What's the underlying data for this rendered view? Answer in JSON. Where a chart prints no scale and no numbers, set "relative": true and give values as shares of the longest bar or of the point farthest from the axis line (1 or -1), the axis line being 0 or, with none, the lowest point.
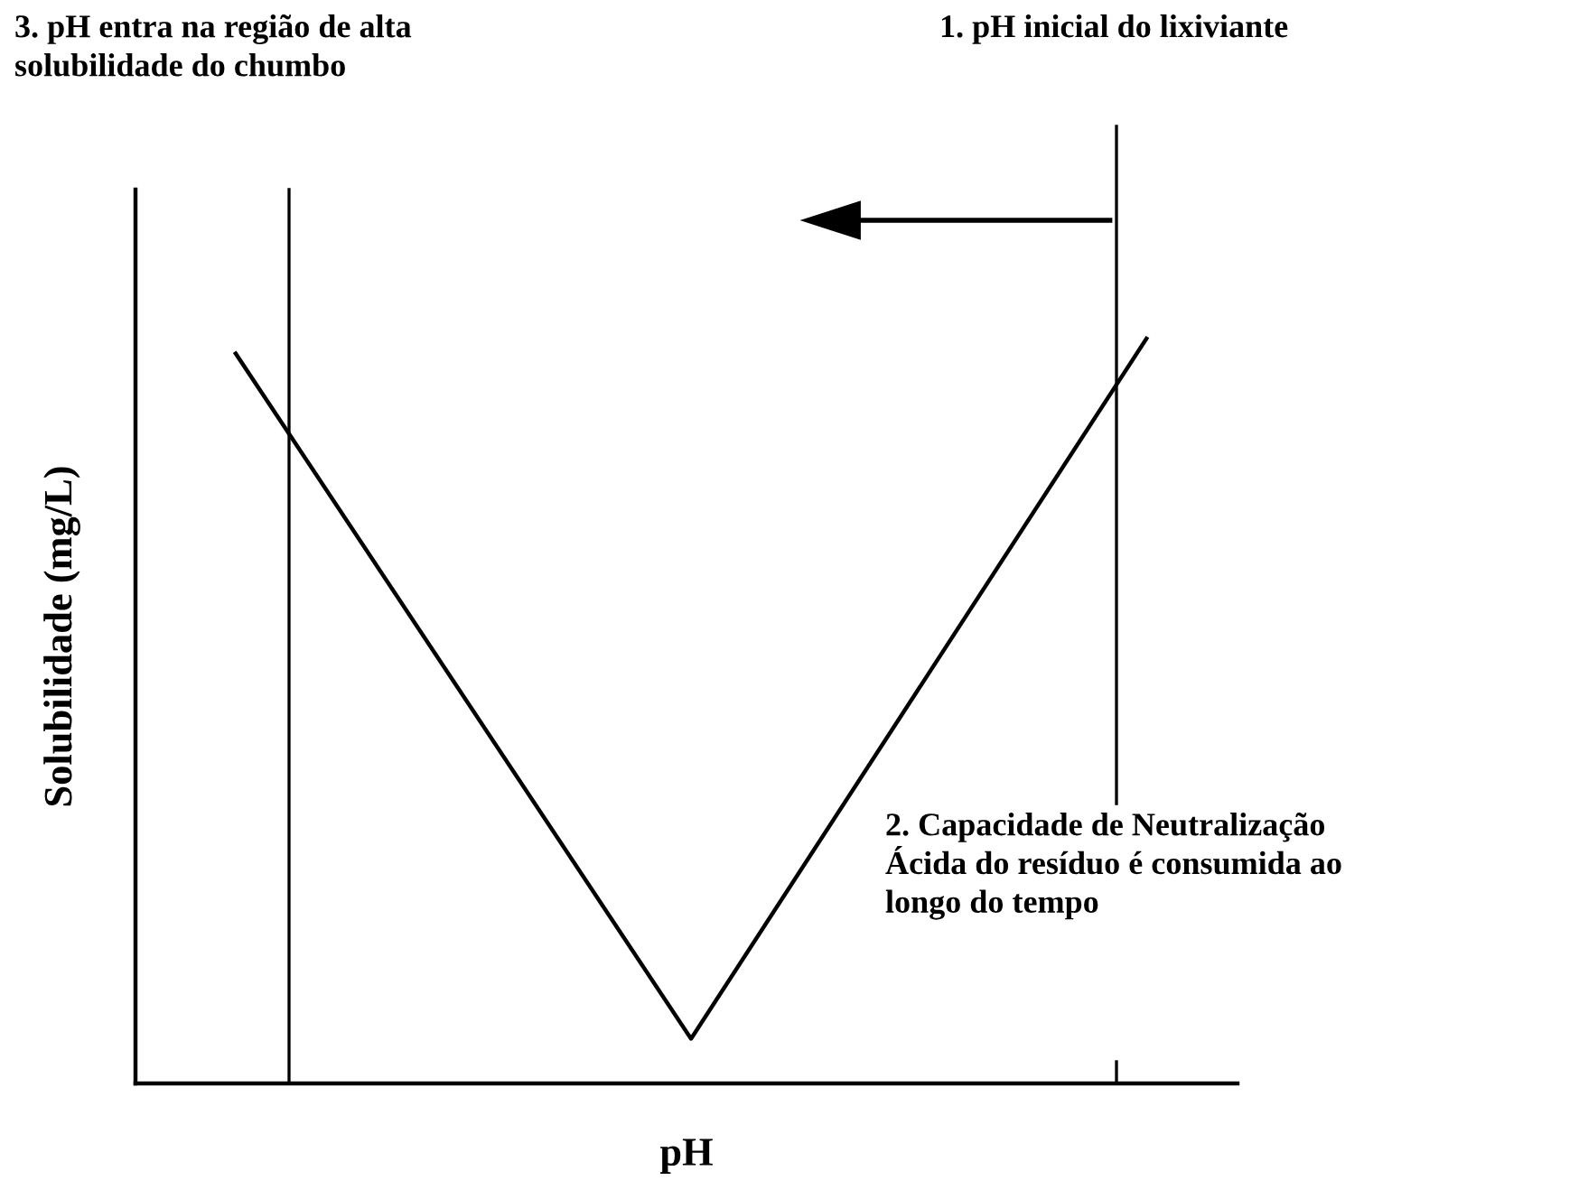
{
  "chart_data": {
    "type": "line",
    "relative": true,
    "xlabel": "pH",
    "ylabel": "Solubilidade (mg/L)",
    "categories": [
      null,
      null,
      null
    ],
    "series": [
      {
        "color": "#000000",
        "values": [
          0.98,
          0.06,
          1
        ]
      }
    ],
    "annotations": [
      "3. pH entra na região de alta\nsolubilidade do chumbo",
      "1. pH inicial do lixiviante",
      "2. Capacidade de Neutralização\nÁcida do resíduo é consumida ao\nlongo do tempo"
    ],
    "grid": false,
    "legend": false,
    "marker": "none",
    "line_style": "solid"
  }
}
